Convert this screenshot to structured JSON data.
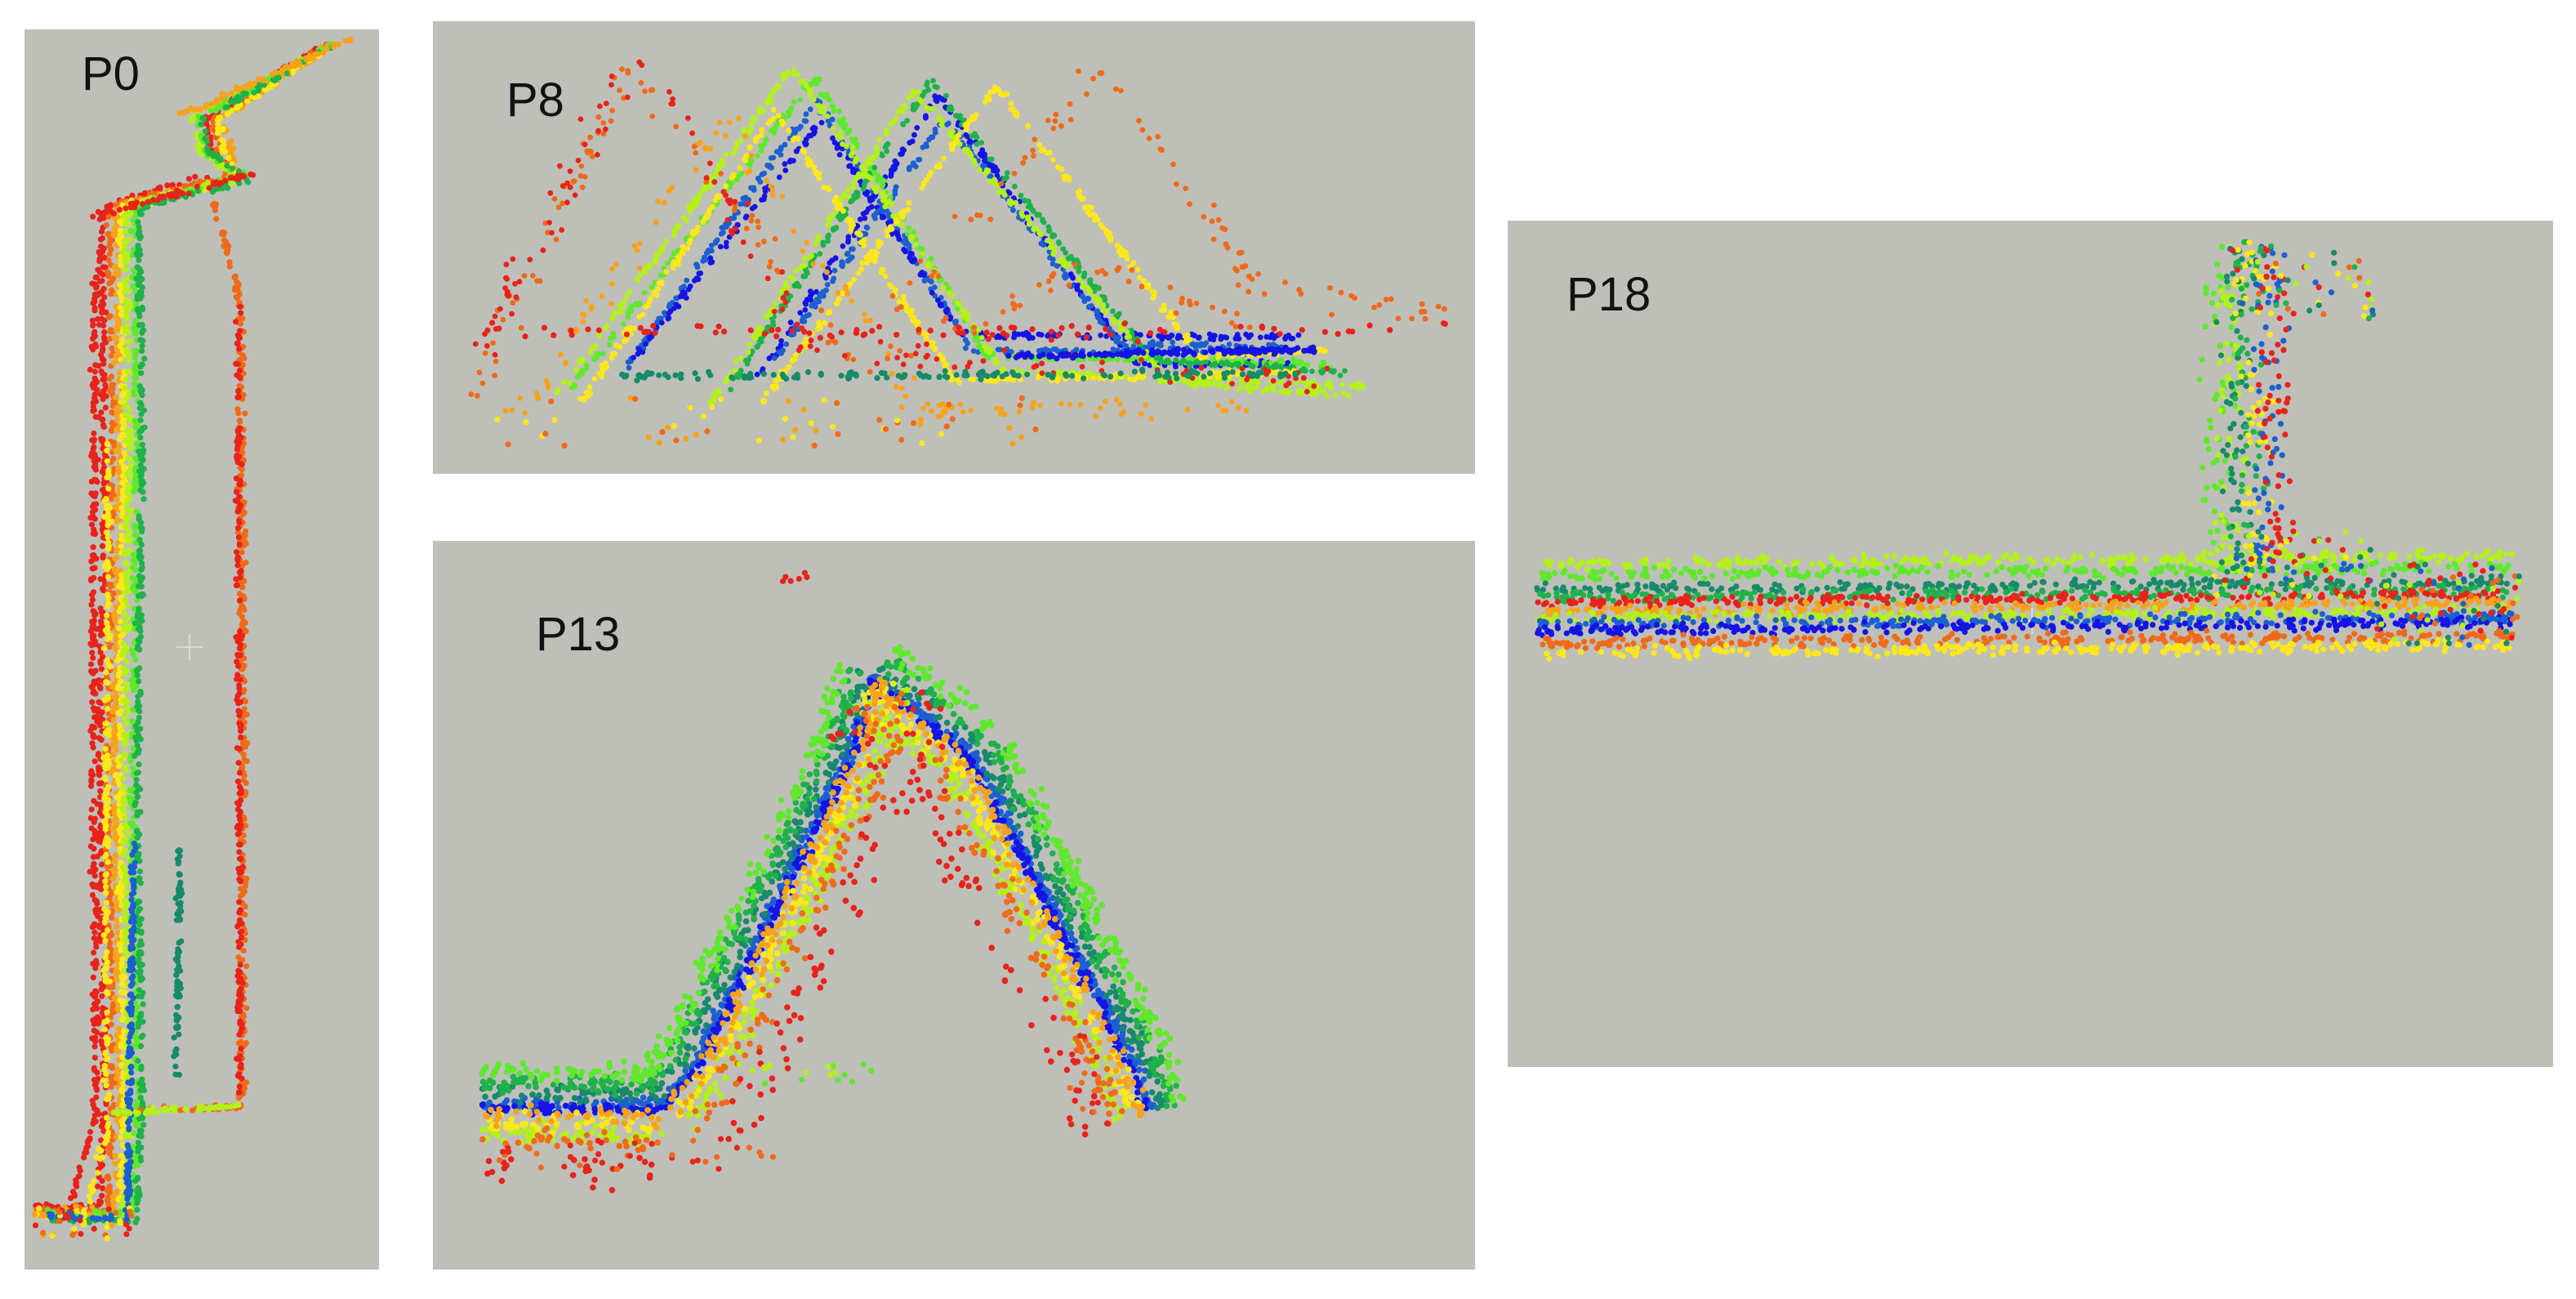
{
  "background_color": "#bebfb8",
  "palette": [
    "#e8231b",
    "#f06a1a",
    "#f7a21b",
    "#ffe81a",
    "#b4f01a",
    "#5fe82c",
    "#1fb24a",
    "#178a6a",
    "#1c5fd0",
    "#1414e6"
  ],
  "panels": [
    {
      "id": "p0",
      "label": "P0",
      "crosshair": true
    },
    {
      "id": "p8",
      "label": "P8",
      "crosshair": false
    },
    {
      "id": "p13",
      "label": "P13",
      "crosshair": false
    },
    {
      "id": "p18",
      "label": "P18",
      "crosshair": true
    }
  ]
}
